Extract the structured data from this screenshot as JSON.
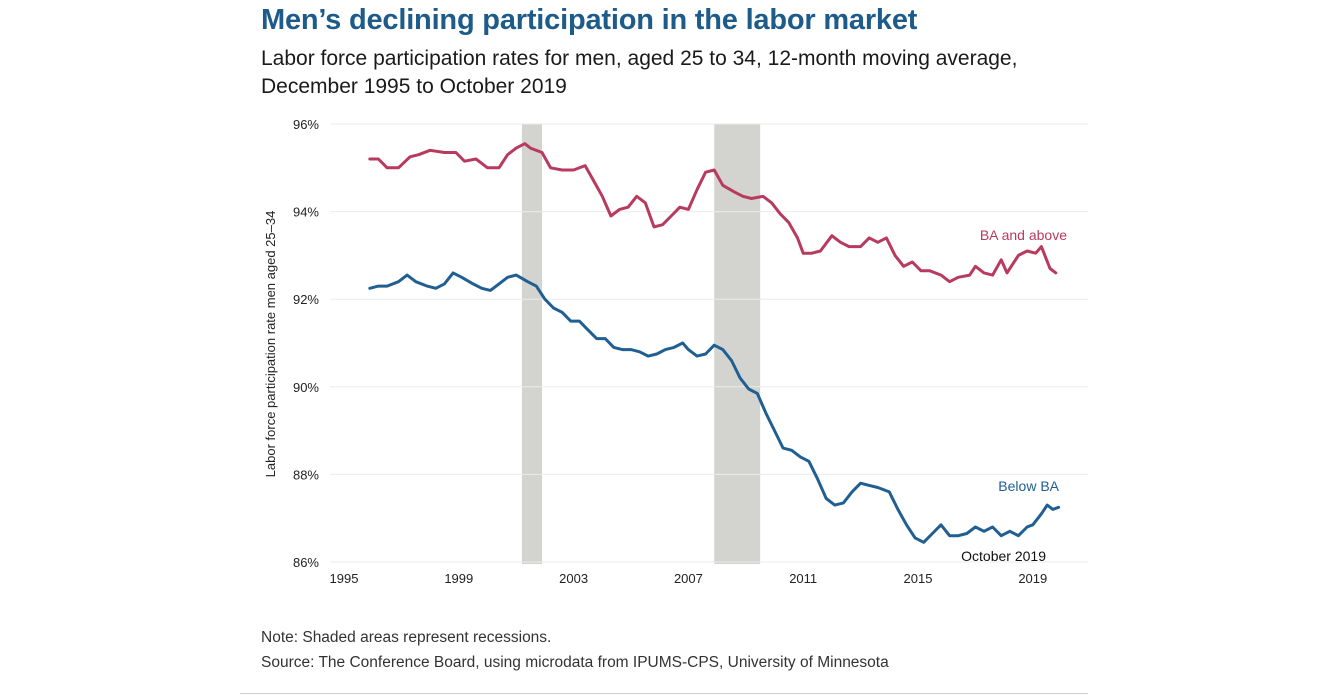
{
  "chart_data": {
    "type": "line",
    "title": "Men’s declining participation in the labor market",
    "subtitle": "Labor force participation rates for men, aged 25 to 34, 12-month moving average, December 1995 to October 2019",
    "xlabel": "",
    "ylabel": "Labor force participation rate men aged 25–34",
    "xlim": [
      1995,
      2020.9
    ],
    "ylim": [
      86,
      96
    ],
    "x_ticks": [
      1995,
      1999,
      2003,
      2007,
      2011,
      2015,
      2019
    ],
    "x_tick_labels": [
      "1995",
      "1999",
      "2003",
      "2007",
      "2011",
      "2015",
      "2019"
    ],
    "y_ticks": [
      86,
      88,
      90,
      92,
      94,
      96
    ],
    "y_tick_labels": [
      "86%",
      "88%",
      "90%",
      "92%",
      "94%",
      "96%"
    ],
    "grid": "horizontal",
    "legend": "inline labels at right end of lines",
    "recessions": [
      {
        "start": 2001.2,
        "end": 2001.9
      },
      {
        "start": 2007.9,
        "end": 2009.5
      }
    ],
    "annotations": [
      {
        "text": "October 2019",
        "x": 2019.8,
        "y": 86.3
      }
    ],
    "series": [
      {
        "name": "BA and above",
        "color": "#b83a5e",
        "x": [
          1995.9,
          1996.2,
          1996.5,
          1996.9,
          1997.3,
          1997.6,
          1998.0,
          1998.5,
          1998.9,
          1999.2,
          1999.6,
          2000.0,
          2000.4,
          2000.7,
          2001.0,
          2001.3,
          2001.5,
          2001.9,
          2002.2,
          2002.6,
          2003.0,
          2003.4,
          2003.7,
          2004.0,
          2004.3,
          2004.6,
          2004.9,
          2005.2,
          2005.5,
          2005.8,
          2006.1,
          2006.4,
          2006.7,
          2007.0,
          2007.3,
          2007.6,
          2007.9,
          2008.2,
          2008.6,
          2008.9,
          2009.2,
          2009.6,
          2009.9,
          2010.2,
          2010.5,
          2010.8,
          2011.0,
          2011.3,
          2011.6,
          2012.0,
          2012.3,
          2012.6,
          2013.0,
          2013.3,
          2013.6,
          2013.9,
          2014.2,
          2014.5,
          2014.8,
          2015.1,
          2015.4,
          2015.8,
          2016.1,
          2016.4,
          2016.8,
          2017.0,
          2017.3,
          2017.6,
          2017.9,
          2018.1,
          2018.5,
          2018.8,
          2019.1,
          2019.3,
          2019.6,
          2019.8
        ],
        "values": [
          95.2,
          95.2,
          95.0,
          95.0,
          95.25,
          95.3,
          95.4,
          95.35,
          95.35,
          95.15,
          95.2,
          95.0,
          95.0,
          95.3,
          95.45,
          95.55,
          95.45,
          95.35,
          95.0,
          94.95,
          94.95,
          95.05,
          94.7,
          94.35,
          93.9,
          94.05,
          94.1,
          94.35,
          94.2,
          93.65,
          93.7,
          93.9,
          94.1,
          94.05,
          94.5,
          94.9,
          94.95,
          94.6,
          94.45,
          94.35,
          94.3,
          94.35,
          94.2,
          93.95,
          93.75,
          93.4,
          93.05,
          93.05,
          93.1,
          93.45,
          93.3,
          93.2,
          93.2,
          93.4,
          93.3,
          93.4,
          93.0,
          92.75,
          92.85,
          92.65,
          92.65,
          92.55,
          92.4,
          92.5,
          92.55,
          92.75,
          92.6,
          92.55,
          92.9,
          92.6,
          93.0,
          93.1,
          93.05,
          93.2,
          92.7,
          92.6
        ]
      },
      {
        "name": "Below BA",
        "color": "#1f5f91",
        "x": [
          1995.9,
          1996.2,
          1996.5,
          1996.9,
          1997.2,
          1997.5,
          1997.9,
          1998.2,
          1998.5,
          1998.8,
          1999.1,
          1999.5,
          1999.8,
          2000.1,
          2000.4,
          2000.7,
          2001.0,
          2001.4,
          2001.7,
          2002.0,
          2002.3,
          2002.6,
          2002.9,
          2003.2,
          2003.5,
          2003.8,
          2004.1,
          2004.4,
          2004.7,
          2005.0,
          2005.3,
          2005.6,
          2005.9,
          2006.2,
          2006.5,
          2006.8,
          2007.0,
          2007.3,
          2007.6,
          2007.9,
          2008.2,
          2008.5,
          2008.8,
          2009.1,
          2009.4,
          2009.7,
          2010.0,
          2010.3,
          2010.6,
          2010.9,
          2011.2,
          2011.5,
          2011.8,
          2012.1,
          2012.4,
          2012.7,
          2013.0,
          2013.3,
          2013.6,
          2014.0,
          2014.3,
          2014.6,
          2014.9,
          2015.2,
          2015.5,
          2015.8,
          2016.1,
          2016.4,
          2016.7,
          2017.0,
          2017.3,
          2017.6,
          2017.9,
          2018.2,
          2018.5,
          2018.8,
          2019.0,
          2019.3,
          2019.5,
          2019.7,
          2019.9
        ],
        "values": [
          92.25,
          92.3,
          92.3,
          92.4,
          92.55,
          92.4,
          92.3,
          92.25,
          92.35,
          92.6,
          92.5,
          92.35,
          92.25,
          92.2,
          92.35,
          92.5,
          92.55,
          92.4,
          92.3,
          92.0,
          91.8,
          91.7,
          91.5,
          91.5,
          91.3,
          91.1,
          91.1,
          90.9,
          90.85,
          90.85,
          90.8,
          90.7,
          90.75,
          90.85,
          90.9,
          91.0,
          90.85,
          90.7,
          90.75,
          90.95,
          90.85,
          90.6,
          90.2,
          89.95,
          89.85,
          89.4,
          89.0,
          88.6,
          88.55,
          88.4,
          88.3,
          87.9,
          87.45,
          87.3,
          87.35,
          87.6,
          87.8,
          87.75,
          87.7,
          87.6,
          87.2,
          86.85,
          86.55,
          86.45,
          86.65,
          86.85,
          86.6,
          86.6,
          86.65,
          86.8,
          86.7,
          86.8,
          86.6,
          86.7,
          86.6,
          86.8,
          86.85,
          87.1,
          87.3,
          87.2,
          87.25
        ]
      }
    ]
  },
  "footer": {
    "note": "Note: Shaded areas represent recessions.",
    "source": "Source: The Conference Board, using microdata from IPUMS-CPS, University of Minnesota"
  },
  "colors": {
    "title": "#1d5b8a",
    "recession_shade": "#d3d3d0",
    "gridline": "#ebebeb"
  }
}
